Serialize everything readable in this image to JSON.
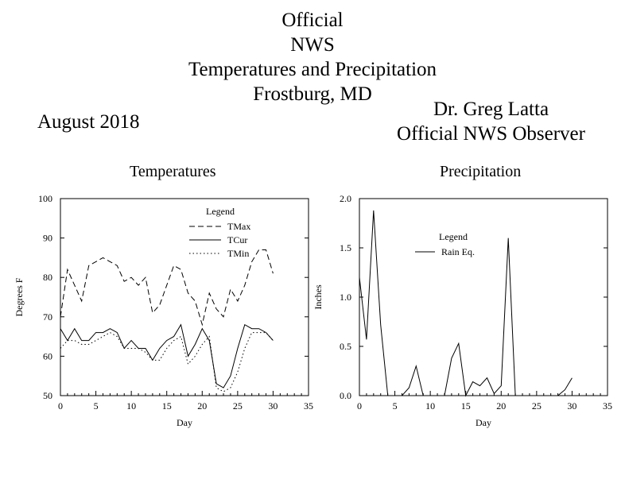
{
  "header": {
    "title_lines": [
      "Official",
      "NWS",
      "Temperatures and Precipitation",
      "Frostburg, MD"
    ],
    "period": "August 2018",
    "observer_name": "Dr. Greg Latta",
    "observer_role": "Official NWS Observer"
  },
  "chart_data": [
    {
      "type": "line",
      "title": "Temperatures",
      "xlabel": "Day",
      "ylabel": "Degrees F",
      "xlim": [
        0,
        35
      ],
      "ylim": [
        50,
        100
      ],
      "xticks": [
        0,
        5,
        10,
        15,
        20,
        25,
        30,
        35
      ],
      "yticks": [
        50,
        60,
        70,
        80,
        90,
        100
      ],
      "legend_title": "Legend",
      "legend_placement": "top-right",
      "x": [
        0,
        1,
        2,
        3,
        4,
        5,
        6,
        7,
        8,
        9,
        10,
        11,
        12,
        13,
        14,
        15,
        16,
        17,
        18,
        19,
        20,
        21,
        22,
        23,
        24,
        25,
        26,
        27,
        28,
        29,
        30
      ],
      "series": [
        {
          "name": "TMax",
          "style": "dashed",
          "values": [
            70,
            82,
            78,
            74,
            83,
            84,
            85,
            84,
            83,
            79,
            80,
            78,
            80,
            71,
            73,
            78,
            83,
            82,
            76,
            74,
            68,
            76,
            72,
            70,
            77,
            74,
            78,
            84,
            87,
            87,
            81
          ]
        },
        {
          "name": "TCur",
          "style": "solid",
          "values": [
            67,
            64,
            67,
            64,
            64,
            66,
            66,
            67,
            66,
            62,
            64,
            62,
            62,
            59,
            62,
            64,
            65,
            68,
            60,
            63,
            67,
            64,
            53,
            52,
            55,
            62,
            68,
            67,
            67,
            66,
            64
          ]
        },
        {
          "name": "TMin",
          "style": "dotted",
          "values": [
            62,
            64,
            64,
            63,
            63,
            64,
            65,
            66,
            65,
            62,
            62,
            62,
            61,
            59,
            59,
            62,
            64,
            65,
            58,
            60,
            63,
            65,
            52,
            51,
            52,
            56,
            62,
            66,
            66,
            66,
            64
          ]
        }
      ]
    },
    {
      "type": "line",
      "title": "Precipitation",
      "xlabel": "Day",
      "ylabel": "Inches",
      "xlim": [
        0,
        35
      ],
      "ylim": [
        0,
        2.0
      ],
      "xticks": [
        0,
        5,
        10,
        15,
        20,
        25,
        30,
        35
      ],
      "yticks": [
        0.0,
        0.5,
        1.0,
        1.5,
        2.0
      ],
      "ytick_labels": [
        "0.0",
        "0.5",
        "1.0",
        "1.5",
        "2.0"
      ],
      "legend_title": "Legend",
      "legend_placement": "top-center",
      "x": [
        0,
        1,
        2,
        3,
        4,
        5,
        6,
        7,
        8,
        9,
        10,
        11,
        12,
        13,
        14,
        15,
        16,
        17,
        18,
        19,
        20,
        21,
        22,
        23,
        24,
        25,
        26,
        27,
        28,
        29,
        30
      ],
      "series": [
        {
          "name": "Rain Eq.",
          "style": "solid",
          "values": [
            1.2,
            0.57,
            1.88,
            0.72,
            0,
            0,
            0,
            0.08,
            0.3,
            0,
            0,
            0,
            0,
            0.38,
            0.53,
            0,
            0.14,
            0.1,
            0.18,
            0.02,
            0.1,
            1.6,
            0,
            0,
            0,
            0,
            0,
            0,
            0,
            0.06,
            0.18
          ]
        }
      ]
    }
  ]
}
